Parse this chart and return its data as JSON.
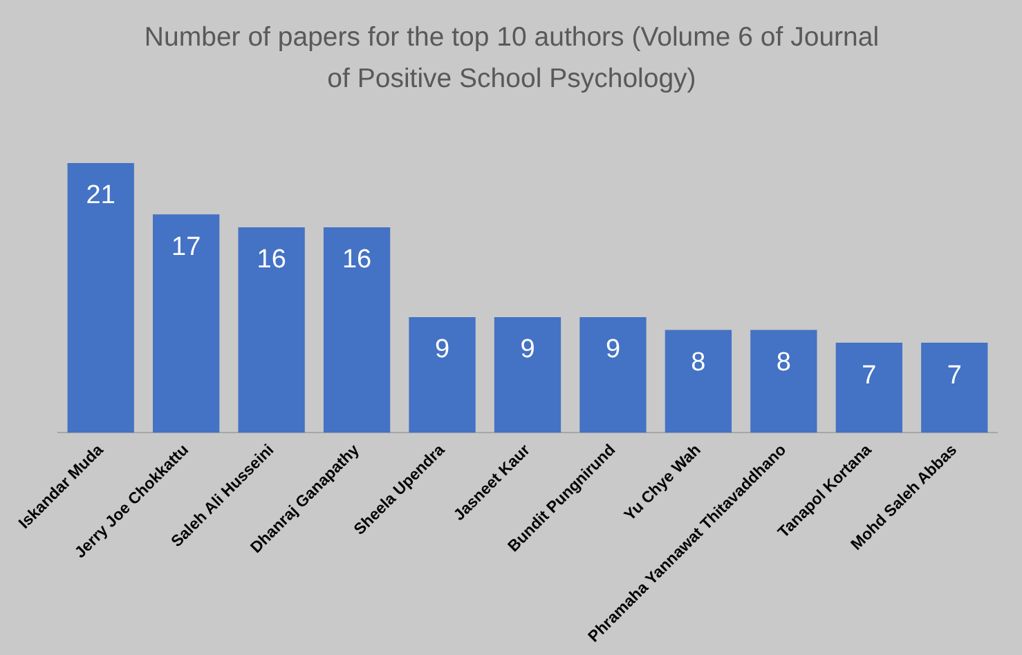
{
  "chart_data": {
    "type": "bar",
    "title": "Number of papers for the top 10 authors (Volume 6 of Journal of Positive School Psychology)",
    "categories": [
      "Iskandar Muda",
      "Jerry Joe Chokkattu",
      "Saleh Ali Husseini",
      "Dhanraj Ganapathy",
      "Sheela Upendra",
      "Jasneet Kaur",
      "Bundit Pungnirund",
      "Yu Chye Wah",
      "Phramaha Yannawat Thitavaddhano",
      "Tanapol Kortana",
      "Mohd Saleh Abbas"
    ],
    "values": [
      21,
      17,
      16,
      16,
      9,
      9,
      9,
      8,
      8,
      7,
      7
    ],
    "color": "#4472c4",
    "data_labels": true,
    "grid": false,
    "legend": false
  }
}
